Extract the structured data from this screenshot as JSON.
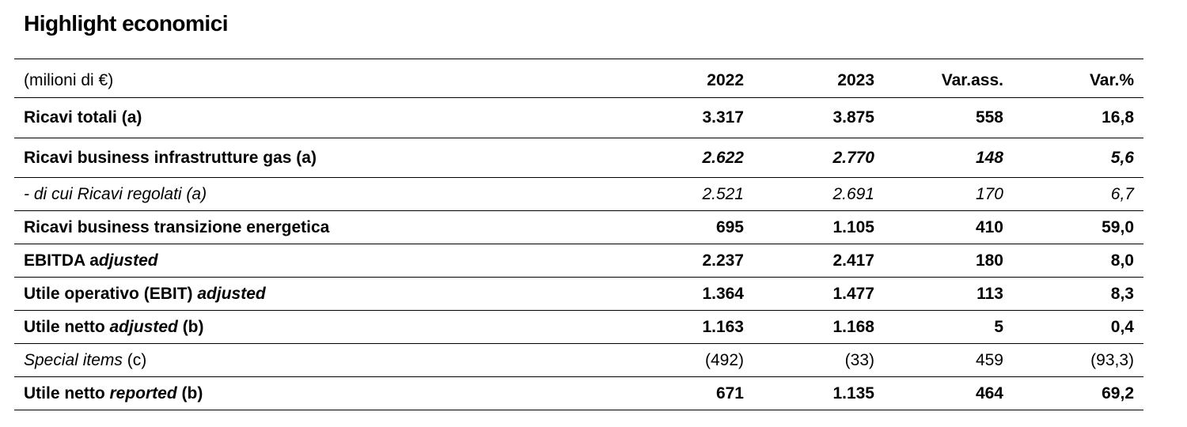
{
  "title": "Highlight economici",
  "table": {
    "header": [
      "(milioni di €)",
      "2022",
      "2023",
      "Var.ass.",
      "Var.%"
    ],
    "rows": [
      {
        "label": [
          {
            "text": "Ricavi totali (a)",
            "italic": false
          }
        ],
        "bold": true,
        "values_italic": false,
        "values": [
          "3.317",
          "3.875",
          "558",
          "16,8"
        ]
      },
      {
        "label": [
          {
            "text": "Ricavi business infrastrutture gas (a)",
            "italic": false
          }
        ],
        "bold": true,
        "values_italic": true,
        "values": [
          "2.622",
          "2.770",
          "148",
          "5,6"
        ]
      },
      {
        "label": [
          {
            "text": "- di cui Ricavi regolati (a)",
            "italic": true
          }
        ],
        "bold": false,
        "values_italic": true,
        "values": [
          "2.521",
          "2.691",
          "170",
          "6,7"
        ]
      },
      {
        "label": [
          {
            "text": "Ricavi business transizione energetica",
            "italic": false
          }
        ],
        "bold": true,
        "values_italic": false,
        "values": [
          "695",
          "1.105",
          "410",
          "59,0"
        ]
      },
      {
        "label": [
          {
            "text": "EBITDA a",
            "italic": false
          },
          {
            "text": "djusted",
            "italic": true
          }
        ],
        "bold": true,
        "values_italic": false,
        "values": [
          "2.237",
          "2.417",
          "180",
          "8,0"
        ]
      },
      {
        "label": [
          {
            "text": "Utile operativo (EBIT) ",
            "italic": false
          },
          {
            "text": "adjusted",
            "italic": true
          }
        ],
        "bold": true,
        "values_italic": false,
        "values": [
          "1.364",
          "1.477",
          "113",
          "8,3"
        ]
      },
      {
        "label": [
          {
            "text": "Utile netto ",
            "italic": false
          },
          {
            "text": "adjusted",
            "italic": true
          },
          {
            "text": " (b)",
            "italic": false
          }
        ],
        "bold": true,
        "values_italic": false,
        "values": [
          "1.163",
          "1.168",
          "5",
          "0,4"
        ]
      },
      {
        "label": [
          {
            "text": "Special items",
            "italic": true
          },
          {
            "text": " (c)",
            "italic": false
          }
        ],
        "bold": false,
        "values_italic": false,
        "values": [
          "(492)",
          "(33)",
          "459",
          "(93,3)"
        ]
      },
      {
        "label": [
          {
            "text": "Utile netto ",
            "italic": false
          },
          {
            "text": "reported",
            "italic": true
          },
          {
            "text": " (b)",
            "italic": false
          }
        ],
        "bold": true,
        "values_italic": false,
        "values": [
          "671",
          "1.135",
          "464",
          "69,2"
        ]
      }
    ]
  }
}
